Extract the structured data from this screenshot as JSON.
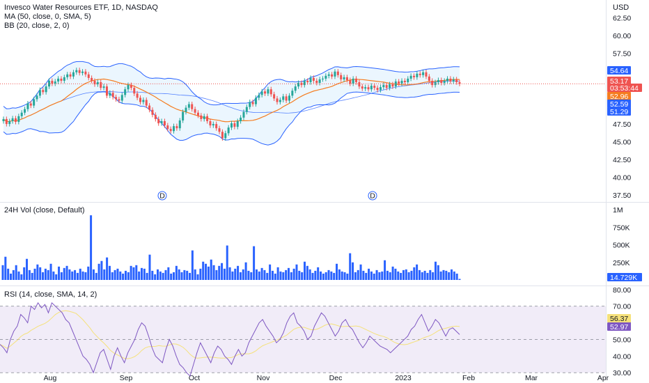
{
  "legend": {
    "title": "Invesco Water Resources ETF, 1D, NASDAQ",
    "ma": "MA (50, close, 0, SMA, 5)",
    "bb": "BB (20, close, 2, 0)",
    "vol": "24H Vol (close, Default)",
    "rsi": "RSI (14, close, SMA, 14, 2)"
  },
  "currency": "USD",
  "colors": {
    "up": "#26a69a",
    "down": "#ef5350",
    "ma": "#f57c1f",
    "bb_line": "#2962ff",
    "bb_fill": "#e3f2fd",
    "volume": "#2962ff",
    "rsi_line": "#7e57c2",
    "rsi_ma": "#f5e17a",
    "rsi_band": "#ede7f6"
  },
  "chart_data": [
    {
      "type": "candlestick",
      "ylim": [
        36.5,
        65.0
      ],
      "y_ticks": [
        "37.50",
        "40.00",
        "42.50",
        "45.00",
        "47.50",
        "50.00",
        "52.50",
        "55.00",
        "57.50",
        "60.00",
        "62.50"
      ],
      "x_ticks": [
        "Aug",
        "Sep",
        "Oct",
        "Nov",
        "Dec",
        "2023",
        "Feb",
        "Mar",
        "Apr"
      ],
      "dividend_markers": [
        "D",
        "D"
      ],
      "close_series": [
        48.2,
        47.5,
        47.9,
        48.3,
        47.8,
        48.6,
        49.1,
        49.6,
        50.4,
        50.1,
        51.0,
        51.5,
        52.3,
        52.0,
        52.8,
        53.6,
        53.2,
        53.5,
        53.9,
        53.6,
        54.1,
        54.5,
        54.2,
        54.8,
        55.1,
        54.7,
        54.9,
        54.5,
        54.0,
        53.6,
        53.1,
        53.4,
        52.6,
        52.8,
        51.5,
        51.9,
        51.3,
        51.0,
        50.8,
        51.6,
        52.4,
        53.0,
        52.6,
        51.8,
        51.2,
        50.6,
        50.9,
        50.1,
        49.5,
        48.8,
        48.2,
        47.6,
        47.9,
        47.3,
        46.8,
        46.5,
        47.2,
        46.9,
        48.0,
        49.2,
        49.8,
        50.3,
        49.6,
        49.1,
        48.7,
        48.2,
        48.6,
        47.9,
        47.3,
        47.5,
        46.9,
        46.4,
        45.5,
        46.2,
        47.0,
        47.6,
        47.1,
        47.9,
        48.4,
        49.2,
        49.9,
        50.6,
        50.3,
        51.2,
        51.6,
        52.1,
        51.8,
        52.4,
        51.7,
        51.1,
        50.6,
        50.9,
        51.4,
        50.8,
        51.5,
        52.2,
        52.8,
        53.3,
        53.0,
        53.6,
        53.4,
        54.0,
        53.6,
        53.3,
        53.8,
        53.9,
        54.3,
        54.5,
        54.2,
        54.9,
        54.4,
        53.8,
        54.1,
        53.7,
        53.2,
        53.9,
        53.4,
        52.8,
        52.5,
        52.7,
        52.4,
        52.9,
        52.6,
        52.3,
        52.7,
        53.0,
        52.6,
        53.1,
        52.8,
        53.5,
        53.2,
        53.6,
        53.4,
        53.9,
        54.3,
        54.1,
        54.6,
        54.4,
        54.8,
        54.2,
        53.6,
        53.0,
        53.4,
        53.7,
        53.3,
        53.6,
        53.9,
        53.5,
        53.8,
        53.4,
        53.17
      ],
      "series": [
        {
          "name": "MA",
          "values": []
        },
        {
          "name": "BB",
          "values": []
        }
      ],
      "price_tags": [
        {
          "label": "54.64",
          "value": 54.64,
          "color": "#2962ff"
        },
        {
          "label": "53.17",
          "value": 53.17,
          "color": "#ef5350"
        },
        {
          "label": "03:53:44",
          "value": 52.55,
          "color": "#ef5350"
        },
        {
          "label": "52.96",
          "value": 51.7,
          "color": "#f57c1f"
        },
        {
          "label": "52.59",
          "value": 50.6,
          "color": "#2962ff"
        },
        {
          "label": "51.29",
          "value": 49.45,
          "color": "#2962ff"
        }
      ]
    },
    {
      "type": "bar",
      "ylim": [
        0,
        1100000
      ],
      "y_ticks": [
        "250K",
        "500K",
        "750K",
        "1M"
      ],
      "last_value": "14.729K",
      "values": [
        210000,
        330000,
        160000,
        90000,
        140000,
        210000,
        120000,
        80000,
        180000,
        300000,
        140000,
        100000,
        160000,
        220000,
        180000,
        110000,
        160000,
        140000,
        230000,
        120000,
        80000,
        190000,
        110000,
        170000,
        200000,
        150000,
        120000,
        140000,
        100000,
        160000,
        120000,
        110000,
        190000,
        920000,
        150000,
        100000,
        230000,
        270000,
        150000,
        320000,
        200000,
        110000,
        140000,
        160000,
        120000,
        90000,
        130000,
        110000,
        200000,
        180000,
        210000,
        120000,
        170000,
        160000,
        100000,
        360000,
        130000,
        80000,
        150000,
        120000,
        100000,
        140000,
        180000,
        90000,
        110000,
        200000,
        150000,
        110000,
        140000,
        130000,
        100000,
        420000,
        150000,
        80000,
        160000,
        260000,
        230000,
        190000,
        290000,
        210000,
        140000,
        200000,
        240000,
        160000,
        490000,
        180000,
        120000,
        160000,
        200000,
        110000,
        150000,
        250000,
        130000,
        110000,
        480000,
        150000,
        120000,
        170000,
        140000,
        100000,
        220000,
        130000,
        90000,
        180000,
        120000,
        110000,
        140000,
        170000,
        110000,
        160000,
        220000,
        130000,
        110000,
        260000,
        200000,
        150000,
        100000,
        130000,
        180000,
        120000,
        90000,
        110000,
        140000,
        120000,
        100000,
        230000,
        150000,
        120000,
        110000,
        90000,
        380000,
        250000,
        110000,
        140000,
        220000,
        130000,
        100000,
        160000,
        120000,
        90000,
        140000,
        110000,
        120000,
        280000,
        130000,
        110000,
        190000,
        160000,
        120000,
        100000,
        140000,
        150000,
        110000,
        130000,
        180000,
        220000,
        140000,
        110000,
        130000,
        100000,
        140000,
        110000,
        260000,
        210000,
        120000,
        140000,
        130000,
        110000,
        150000,
        120000,
        90000,
        14729
      ]
    },
    {
      "type": "line",
      "ylim": [
        28,
        82
      ],
      "y_ticks": [
        "30.00",
        "40.00",
        "50.00",
        "60.00",
        "70.00",
        "80.00"
      ],
      "bands": [
        30,
        70
      ],
      "series": [
        {
          "name": "RSI",
          "values": [
            47,
            45,
            42,
            50,
            55,
            58,
            65,
            63,
            60,
            70,
            68,
            72,
            69,
            71,
            66,
            72,
            70,
            68,
            66,
            62,
            60,
            55,
            50,
            45,
            40,
            38,
            35,
            30,
            36,
            42,
            44,
            38,
            32,
            40,
            45,
            40,
            36,
            42,
            46,
            50,
            56,
            60,
            58,
            52,
            45,
            40,
            38,
            36,
            44,
            50,
            46,
            40,
            35,
            33,
            30,
            28,
            35,
            42,
            48,
            44,
            40,
            36,
            42,
            46,
            44,
            40,
            38,
            35,
            40,
            44,
            40,
            42,
            48,
            52,
            56,
            60,
            62,
            58,
            55,
            52,
            48,
            50,
            54,
            60,
            64,
            66,
            60,
            58,
            55,
            50,
            52,
            58,
            62,
            66,
            64,
            60,
            56,
            52,
            55,
            60,
            62,
            58,
            56,
            52,
            48,
            45,
            48,
            52,
            50,
            48,
            46,
            45,
            44,
            42,
            44,
            46,
            48,
            50,
            52,
            56,
            58,
            62,
            65,
            60,
            55,
            58,
            62,
            60,
            56,
            52,
            56,
            57,
            55,
            52.97
          ]
        },
        {
          "name": "RSI MA",
          "values": []
        }
      ],
      "last_values": {
        "rsi": "52.97",
        "rsi_ma": "56.37"
      }
    }
  ]
}
